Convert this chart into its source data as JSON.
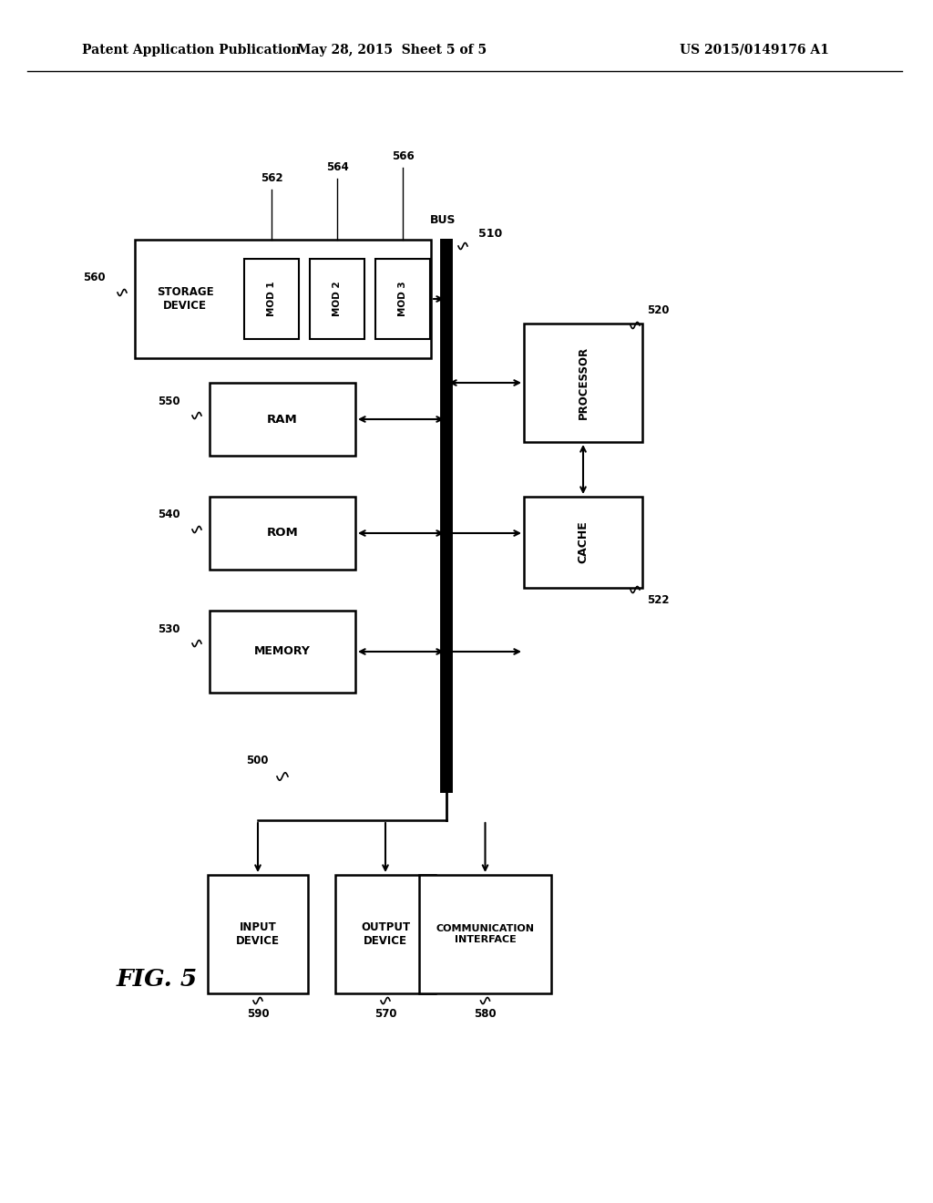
{
  "bg_color": "#ffffff",
  "header_left": "Patent Application Publication",
  "header_center": "May 28, 2015  Sheet 5 of 5",
  "header_right": "US 2015/0149176 A1",
  "fig_label": "FIG. 5"
}
